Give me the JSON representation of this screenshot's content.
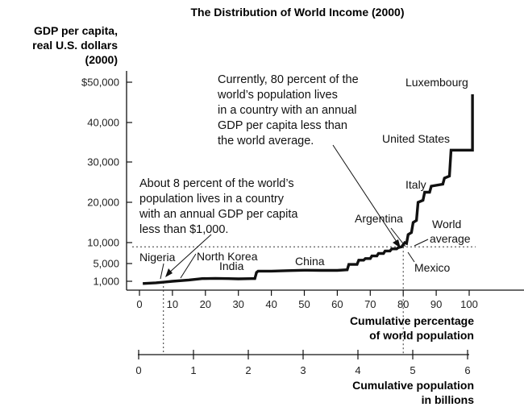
{
  "chart_data": {
    "type": "line",
    "title": "The Distribution of World Income (2000)",
    "ylabel_lines": [
      "GDP per capita,",
      "real U.S. dollars",
      "(2000)"
    ],
    "y_ticks": [
      {
        "value": 1000,
        "label": "1,000"
      },
      {
        "value": 5000,
        "label": "5,000"
      },
      {
        "value": 10000,
        "label": "10,000"
      },
      {
        "value": 20000,
        "label": "20,000"
      },
      {
        "value": 30000,
        "label": "30,000"
      },
      {
        "value": 40000,
        "label": "40,000"
      },
      {
        "value": 50000,
        "label": "$50,000"
      }
    ],
    "x_ticks": [
      {
        "value": 0,
        "label": "0"
      },
      {
        "value": 10,
        "label": "10"
      },
      {
        "value": 20,
        "label": "20"
      },
      {
        "value": 30,
        "label": "30"
      },
      {
        "value": 40,
        "label": "40"
      },
      {
        "value": 50,
        "label": "50"
      },
      {
        "value": 60,
        "label": "60"
      },
      {
        "value": 70,
        "label": "70"
      },
      {
        "value": 80,
        "label": "80"
      },
      {
        "value": 90,
        "label": "90"
      },
      {
        "value": 100,
        "label": "100"
      }
    ],
    "xlabel_lines": [
      "Cumulative percentage",
      "of world population"
    ],
    "x2_ticks": [
      {
        "value": 0,
        "label": "0"
      },
      {
        "value": 1,
        "label": "1"
      },
      {
        "value": 2,
        "label": "2"
      },
      {
        "value": 3,
        "label": "3"
      },
      {
        "value": 4,
        "label": "4"
      },
      {
        "value": 5,
        "label": "5"
      },
      {
        "value": 6,
        "label": "6"
      }
    ],
    "x2label_lines": [
      "Cumulative population",
      "in billions"
    ],
    "series": [
      {
        "points": [
          [
            1,
            500
          ],
          [
            5,
            650
          ],
          [
            8,
            850
          ],
          [
            10,
            1000
          ],
          [
            15,
            1300
          ],
          [
            19,
            1600
          ],
          [
            23,
            1650
          ],
          [
            27,
            1600
          ],
          [
            30,
            1550
          ],
          [
            34,
            1600
          ],
          [
            35,
            1600
          ],
          [
            35.5,
            3000
          ],
          [
            36,
            3300
          ],
          [
            40,
            3300
          ],
          [
            45,
            3400
          ],
          [
            50,
            3500
          ],
          [
            55,
            3450
          ],
          [
            60,
            3450
          ],
          [
            63,
            3600
          ],
          [
            63.5,
            4800
          ],
          [
            66,
            4800
          ],
          [
            66.5,
            5800
          ],
          [
            68,
            5800
          ],
          [
            68.5,
            6200
          ],
          [
            70,
            6200
          ],
          [
            70.5,
            6800
          ],
          [
            72,
            6800
          ],
          [
            72.5,
            7400
          ],
          [
            74,
            7400
          ],
          [
            74.5,
            8000
          ],
          [
            76,
            8000
          ],
          [
            76.5,
            8500
          ],
          [
            78,
            8500
          ],
          [
            78.5,
            8800
          ],
          [
            79.5,
            9000
          ],
          [
            80.5,
            10000
          ],
          [
            81,
            9800
          ],
          [
            81.5,
            12000
          ],
          [
            82.5,
            12500
          ],
          [
            83,
            15000
          ],
          [
            84,
            15500
          ],
          [
            84.5,
            20000
          ],
          [
            86,
            20500
          ],
          [
            86.5,
            22500
          ],
          [
            88,
            22500
          ],
          [
            88.5,
            24000
          ],
          [
            92,
            24500
          ],
          [
            92.5,
            26000
          ],
          [
            94,
            26500
          ],
          [
            94.5,
            33000
          ],
          [
            96,
            33000
          ],
          [
            101,
            33000
          ],
          [
            101,
            47000
          ]
        ]
      }
    ],
    "reference_lines": {
      "world_average": 9000,
      "dollars_1000_percent": 8,
      "eighty_percent": 80
    },
    "xlim": [
      -2,
      101
    ],
    "annotations": {
      "note_low_lines": [
        "About 8 percent of the world’s",
        "population lives in a country",
        "with an annual GDP per capita",
        "less than $1,000."
      ],
      "note_high_lines": [
        "Currently, 80 percent of the",
        "world’s population lives",
        "in a country with an annual",
        "GDP per capita less than",
        "the world average."
      ],
      "labels": {
        "nigeria": "Nigeria",
        "north_korea": "North Korea",
        "india": "India",
        "china": "China",
        "argentina": "Argentina",
        "mexico": "Mexico",
        "italy": "Italy",
        "united_states": "United States",
        "luxembourg": "Luxembourg",
        "world_average_lines": [
          "World",
          "average"
        ]
      }
    }
  }
}
